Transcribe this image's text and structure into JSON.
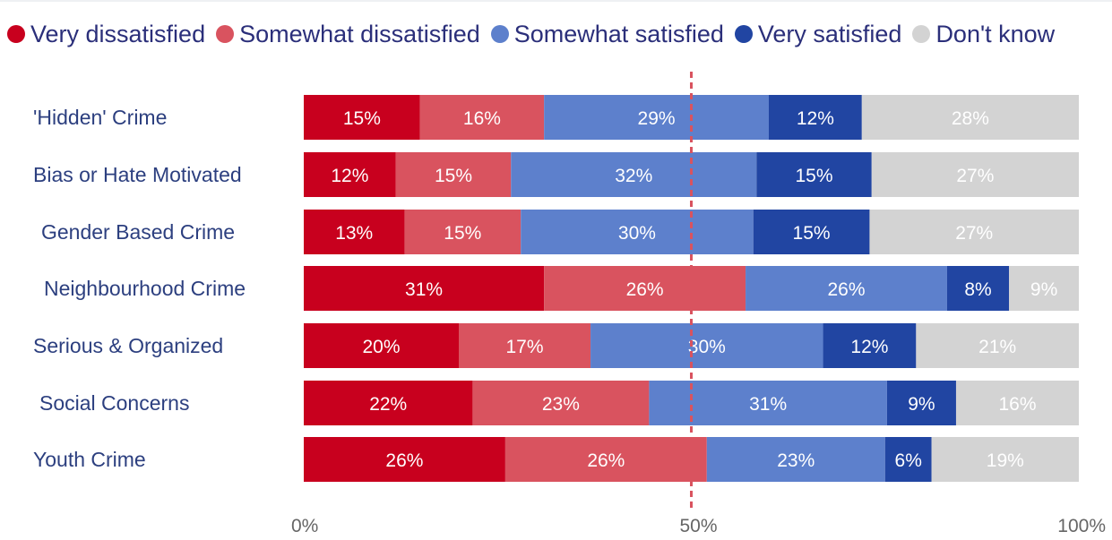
{
  "chart_data": {
    "type": "bar",
    "orientation": "horizontal",
    "stacked": true,
    "categories": [
      "'Hidden' Crime",
      "Bias or Hate Motivated",
      "Gender Based Crime",
      "Neighbourhood Crime",
      "Serious & Organized",
      "Social Concerns",
      "Youth Crime"
    ],
    "series": [
      {
        "name": "Very dissatisfied",
        "color": "#c8001e",
        "label_color": "#ffffff",
        "values": [
          15,
          12,
          13,
          31,
          20,
          22,
          26
        ],
        "labels": [
          "15%",
          "12%",
          "13%",
          "31%",
          "20%",
          "22%",
          "26%"
        ]
      },
      {
        "name": "Somewhat dissatisfied",
        "color": "#d9535f",
        "label_color": "#ffffff",
        "values": [
          16,
          15,
          15,
          26,
          17,
          23,
          26
        ],
        "labels": [
          "16%",
          "15%",
          "15%",
          "26%",
          "17%",
          "23%",
          "26%"
        ]
      },
      {
        "name": "Somewhat satisfied",
        "color": "#5d80cc",
        "label_color": "#ffffff",
        "values": [
          29,
          32,
          30,
          26,
          30,
          31,
          23
        ],
        "labels": [
          "29%",
          "32%",
          "30%",
          "26%",
          "30%",
          "31%",
          "23%"
        ]
      },
      {
        "name": "Very satisfied",
        "color": "#2145a2",
        "label_color": "#ffffff",
        "values": [
          12,
          15,
          15,
          8,
          12,
          9,
          6
        ],
        "labels": [
          "12%",
          "15%",
          "15%",
          "8%",
          "12%",
          "9%",
          "6%"
        ]
      },
      {
        "name": "Don't know",
        "color": "#d3d3d3",
        "label_color": "#ffffff",
        "values": [
          28,
          27,
          27,
          9,
          21,
          16,
          19
        ],
        "labels": [
          "28%",
          "27%",
          "27%",
          "9%",
          "21%",
          "16%",
          "19%"
        ]
      }
    ],
    "xlim": [
      0,
      100
    ],
    "x_ticks": [
      "0%",
      "50%",
      "100%"
    ],
    "reference_line": {
      "value": 50,
      "style": "dashed",
      "color": "#d9535f"
    },
    "legend_position": "top-left",
    "grid": false
  }
}
